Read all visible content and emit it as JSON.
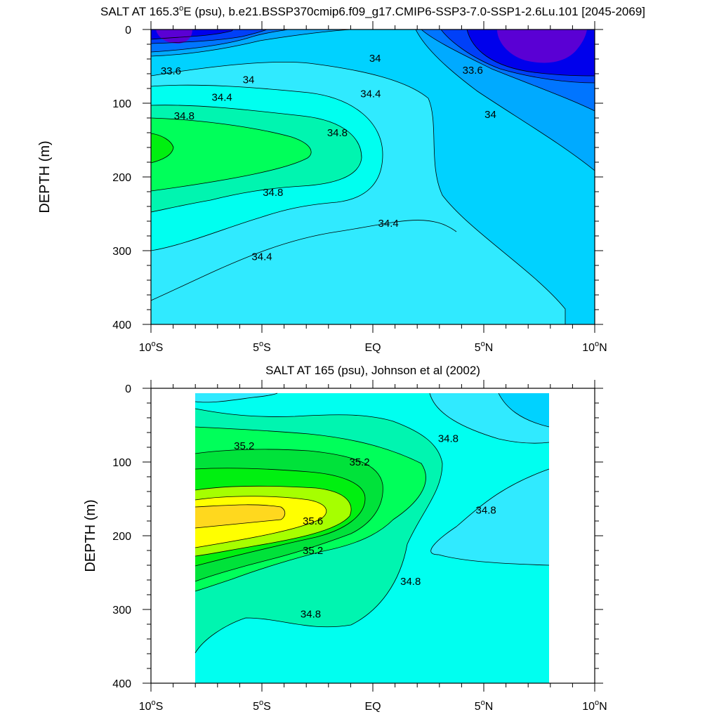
{
  "chart_data": [
    {
      "type": "contour",
      "title": "SALT AT 165.3°E (psu), b.e21.BSSP370cmip6.f09_g17.CMIP6-SSP3-7.0-SSP1-2.6Lu.101 [2045-2069]",
      "title_parts": {
        "prefix": "SALT AT 165.3",
        "degree": "o",
        "suffix": "E (psu), b.e21.BSSP370cmip6.f09_g17.CMIP6-SSP3-7.0-SSP1-2.6Lu.101 [2045-2069]"
      },
      "xlabel": "",
      "ylabel": "DEPTH (m)",
      "xlim": [
        -10,
        10
      ],
      "ylim": [
        400,
        0
      ],
      "y_ticks": [
        "0",
        "100",
        "200",
        "300",
        "400"
      ],
      "x_ticks": [
        {
          "num": "10",
          "hemi": "S"
        },
        {
          "num": "5",
          "hemi": "S"
        },
        {
          "eq": "EQ"
        },
        {
          "num": "5",
          "hemi": "N"
        },
        {
          "num": "10",
          "hemi": "N"
        }
      ],
      "contour_levels": [
        33.2,
        33.4,
        33.6,
        33.8,
        34.0,
        34.2,
        34.4,
        34.6,
        34.8,
        35.0
      ],
      "contour_labels": [
        {
          "text": "33.6",
          "lat": -9.1,
          "depth": 56
        },
        {
          "text": "34",
          "lat": -5.6,
          "depth": 68
        },
        {
          "text": "34.4",
          "lat": -6.8,
          "depth": 92
        },
        {
          "text": "34.8",
          "lat": -8.5,
          "depth": 117
        },
        {
          "text": "34",
          "lat": 0.1,
          "depth": 39
        },
        {
          "text": "33.6",
          "lat": 4.5,
          "depth": 55
        },
        {
          "text": "34.4",
          "lat": -0.1,
          "depth": 87
        },
        {
          "text": "34.8",
          "lat": -1.6,
          "depth": 140
        },
        {
          "text": "34",
          "lat": 5.3,
          "depth": 115
        },
        {
          "text": "34.8",
          "lat": -4.5,
          "depth": 221
        },
        {
          "text": "34.4",
          "lat": 0.7,
          "depth": 263
        },
        {
          "text": "34.4",
          "lat": -5.0,
          "depth": 308
        }
      ]
    },
    {
      "type": "contour",
      "title": "SALT AT 165 (psu), Johnson et al (2002)",
      "xlabel": "",
      "ylabel": "DEPTH (m)",
      "xlim": [
        -10,
        10
      ],
      "ylim": [
        400,
        0
      ],
      "data_extent_lat": [
        -8,
        8
      ],
      "y_ticks": [
        "0",
        "100",
        "200",
        "300",
        "400"
      ],
      "x_ticks": [
        {
          "num": "10",
          "hemi": "S"
        },
        {
          "num": "5",
          "hemi": "S"
        },
        {
          "eq": "EQ"
        },
        {
          "num": "5",
          "hemi": "N"
        },
        {
          "num": "10",
          "hemi": "N"
        }
      ],
      "contour_levels": [
        34.4,
        34.6,
        34.8,
        35.0,
        35.2,
        35.4,
        35.6,
        35.8
      ],
      "contour_labels": [
        {
          "text": "35.2",
          "lat": -5.8,
          "depth": 78
        },
        {
          "text": "35.2",
          "lat": -0.6,
          "depth": 100
        },
        {
          "text": "34.8",
          "lat": 3.4,
          "depth": 68
        },
        {
          "text": "35.6",
          "lat": -2.7,
          "depth": 180
        },
        {
          "text": "34.8",
          "lat": 5.1,
          "depth": 165
        },
        {
          "text": "35.2",
          "lat": -2.7,
          "depth": 220
        },
        {
          "text": "34.8",
          "lat": 1.7,
          "depth": 262
        },
        {
          "text": "34.8",
          "lat": -2.8,
          "depth": 306
        }
      ]
    }
  ],
  "colors": {
    "c33_2": "#5a00d4",
    "c33_4": "#0000ec",
    "c33_6": "#0040f8",
    "c33_8": "#0075ff",
    "c34_0": "#00aaff",
    "c34_2": "#00d2ff",
    "c34_4": "#30eaff",
    "c34_6": "#00fff0",
    "c34_8": "#00f5b0",
    "c35_0": "#00ff5a",
    "c35_2": "#00e23a",
    "c35_4": "#00f010",
    "c35_6": "#a6ff00",
    "c35_8": "#ffff00",
    "c36_0": "#ffd81e"
  }
}
